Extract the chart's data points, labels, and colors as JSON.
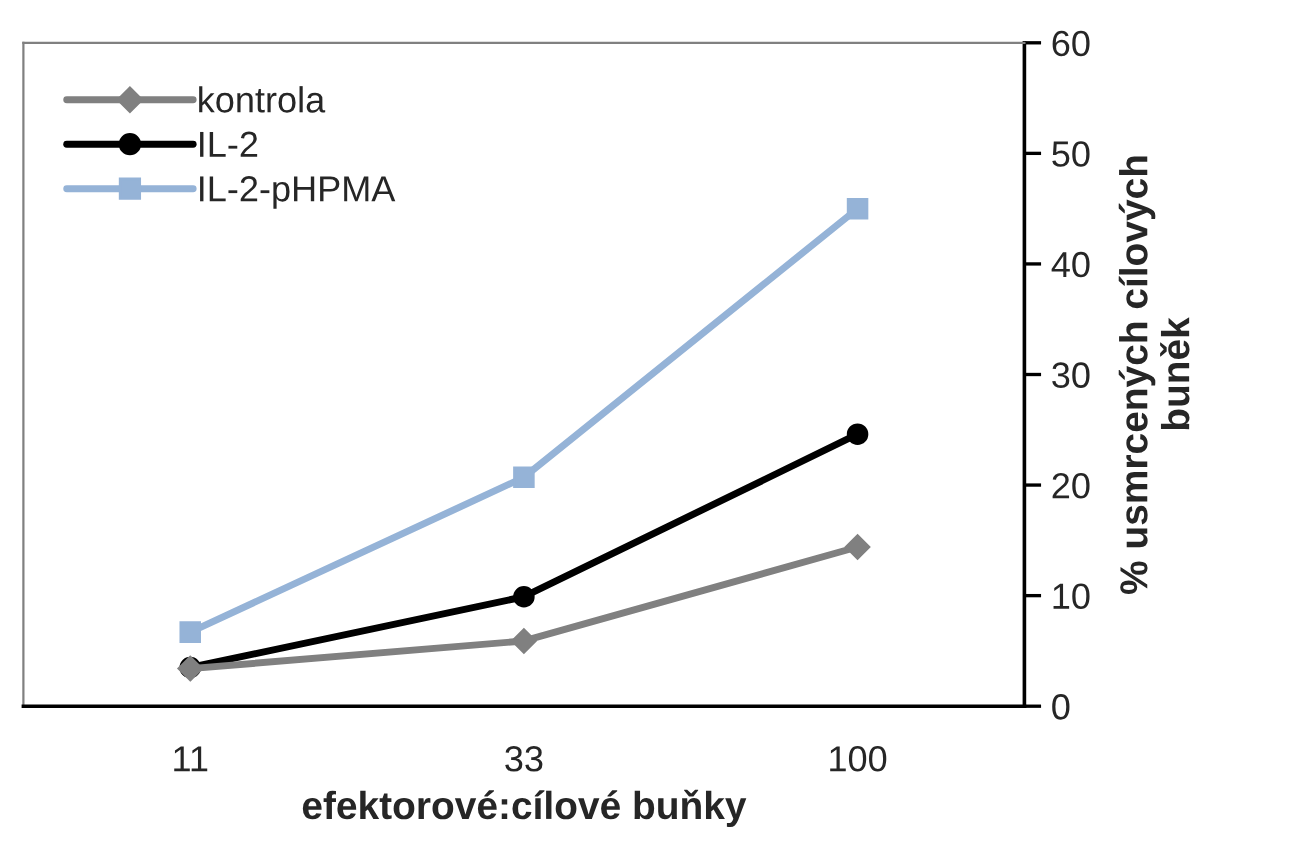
{
  "chart_data": {
    "type": "line",
    "xlabel": "efektorové:cílové buňky",
    "ylabel": "% usmrcených cílových\nbuněk",
    "categories": [
      "11",
      "33",
      "100"
    ],
    "series": [
      {
        "name": "kontrola",
        "color": "#808080",
        "marker": "diamond",
        "values": [
          3.4,
          5.9,
          14.4
        ]
      },
      {
        "name": "IL-2",
        "color": "#000000",
        "marker": "circle",
        "values": [
          3.5,
          9.9,
          24.6
        ]
      },
      {
        "name": "IL-2-pHPMA",
        "color": "#95b3d7",
        "marker": "square",
        "values": [
          6.7,
          20.7,
          45.0
        ]
      }
    ],
    "ylim": [
      0,
      60
    ],
    "yticks": [
      0,
      10,
      20,
      30,
      40,
      50,
      60
    ],
    "grid": false,
    "legend": "top left",
    "line_style": "solid"
  }
}
